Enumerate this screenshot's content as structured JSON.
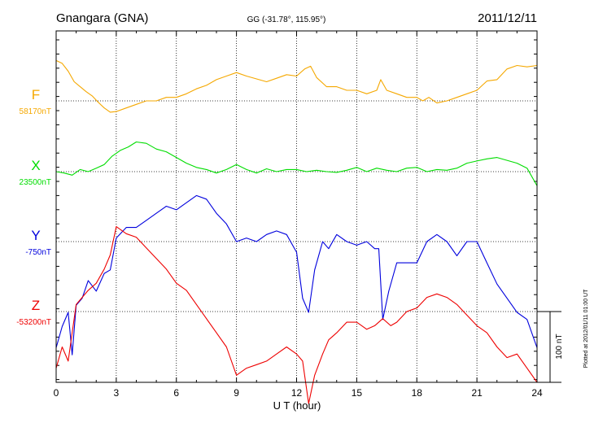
{
  "header": {
    "station": "Gnangara (GNA)",
    "coords": "GG (-31.78°, 115.95°)",
    "date": "2011/12/11"
  },
  "footer": {
    "plotted": "Plotted at 2012/01/11 01:00 UT",
    "scale_label": "100 nT"
  },
  "chart_data": {
    "type": "line",
    "title": "Gnangara (GNA)",
    "xlabel": "U T (hour)",
    "ylabel": "",
    "xlim": [
      0,
      24
    ],
    "xticks": [
      0,
      3,
      6,
      9,
      12,
      15,
      18,
      21,
      24
    ],
    "x_tick_labels": [
      "0",
      "3",
      "6",
      "9",
      "12",
      "15",
      "18",
      "21",
      "24"
    ],
    "grid": true,
    "scale_bar_nT": 100,
    "channels": [
      {
        "name": "F",
        "baseline_label": "58170nT",
        "baseline_nT": 58170,
        "color": "#f5a800",
        "x": [
          0,
          0.3,
          0.6,
          0.9,
          1.2,
          1.5,
          1.8,
          2.1,
          2.4,
          2.7,
          3,
          3.5,
          4,
          4.5,
          5,
          5.5,
          6,
          6.5,
          7,
          7.5,
          8,
          8.5,
          9,
          9.5,
          10,
          10.5,
          11,
          11.5,
          12,
          12.4,
          12.7,
          13,
          13.5,
          14,
          14.5,
          15,
          15.5,
          16,
          16.2,
          16.5,
          17,
          17.5,
          18,
          18.3,
          18.6,
          19,
          19.5,
          20,
          20.5,
          21,
          21.5,
          22,
          22.5,
          23,
          23.5,
          24
        ],
        "y": [
          57,
          53,
          42,
          27,
          20,
          13,
          7,
          -2,
          -10,
          -16,
          -15,
          -10,
          -5,
          0,
          0,
          5,
          5,
          10,
          17,
          22,
          30,
          35,
          40,
          35,
          31,
          27,
          32,
          37,
          35,
          45,
          49,
          33,
          20,
          20,
          15,
          15,
          10,
          15,
          30,
          15,
          10,
          5,
          5,
          0,
          5,
          -3,
          0,
          5,
          10,
          15,
          28,
          30,
          45,
          50,
          48,
          50
        ]
      },
      {
        "name": "X",
        "baseline_label": "23500nT",
        "baseline_nT": 23500,
        "color": "#00dd00",
        "x": [
          0,
          0.4,
          0.8,
          1.2,
          1.6,
          2,
          2.4,
          2.8,
          3.2,
          3.6,
          4,
          4.5,
          5,
          5.5,
          6,
          6.5,
          7,
          7.5,
          8,
          8.5,
          9,
          9.5,
          10,
          10.5,
          11,
          11.5,
          12,
          12.5,
          13,
          13.5,
          14,
          14.5,
          15,
          15.5,
          16,
          16.5,
          17,
          17.5,
          18,
          18.5,
          19,
          19.5,
          20,
          20.5,
          21,
          21.5,
          22,
          22.5,
          23,
          23.5,
          24
        ],
        "y": [
          0,
          -2,
          -5,
          3,
          0,
          5,
          10,
          22,
          30,
          35,
          42,
          40,
          32,
          28,
          20,
          12,
          6,
          3,
          -2,
          3,
          10,
          3,
          -2,
          4,
          0,
          3,
          3,
          0,
          2,
          0,
          -1,
          2,
          6,
          0,
          5,
          2,
          0,
          5,
          6,
          0,
          3,
          2,
          5,
          12,
          15,
          18,
          20,
          16,
          12,
          5,
          -20
        ]
      },
      {
        "name": "Y",
        "baseline_label": "-750nT",
        "baseline_nT": -750,
        "color": "#0000dd",
        "x": [
          0,
          0.3,
          0.6,
          0.8,
          1,
          1.3,
          1.6,
          2,
          2.4,
          2.7,
          3,
          3.5,
          4,
          4.5,
          5,
          5.5,
          6,
          6.5,
          7,
          7.5,
          8,
          8.5,
          9,
          9.5,
          10,
          10.5,
          11,
          11.5,
          12,
          12.3,
          12.6,
          12.9,
          13.3,
          13.6,
          14,
          14.5,
          15,
          15.5,
          15.9,
          16.1,
          16.3,
          16.6,
          17,
          17.5,
          18,
          18.5,
          19,
          19.5,
          20,
          20.5,
          21,
          21.5,
          22,
          22.5,
          23,
          23.5,
          24
        ],
        "y": [
          -150,
          -120,
          -100,
          -160,
          -90,
          -80,
          -55,
          -70,
          -45,
          -40,
          5,
          20,
          20,
          30,
          40,
          50,
          45,
          55,
          65,
          60,
          40,
          25,
          0,
          5,
          0,
          10,
          15,
          10,
          -15,
          -80,
          -100,
          -40,
          0,
          -10,
          10,
          0,
          -5,
          0,
          -10,
          -10,
          -110,
          -70,
          -30,
          -30,
          -30,
          0,
          10,
          0,
          -20,
          0,
          0,
          -30,
          -60,
          -80,
          -100,
          -110,
          -150
        ]
      },
      {
        "name": "Z",
        "baseline_label": "-53200nT",
        "baseline_nT": -53200,
        "color": "#ee0000",
        "x": [
          0,
          0.3,
          0.6,
          0.8,
          1,
          1.3,
          1.6,
          2,
          2.4,
          2.7,
          3,
          3.5,
          4,
          4.5,
          5,
          5.5,
          6,
          6.5,
          7,
          7.5,
          8,
          8.5,
          9,
          9.5,
          10,
          10.5,
          11,
          11.5,
          12,
          12.3,
          12.6,
          12.9,
          13.3,
          13.6,
          14,
          14.5,
          15,
          15.5,
          15.9,
          16.3,
          16.7,
          17,
          17.5,
          18,
          18.5,
          19,
          19.5,
          20,
          20.5,
          21,
          21.5,
          22,
          22.5,
          23,
          23.5,
          24
        ],
        "y": [
          -80,
          -50,
          -70,
          -30,
          10,
          20,
          30,
          40,
          60,
          80,
          120,
          110,
          105,
          90,
          75,
          60,
          40,
          30,
          10,
          -10,
          -30,
          -50,
          -90,
          -80,
          -75,
          -70,
          -60,
          -50,
          -60,
          -70,
          -130,
          -90,
          -60,
          -40,
          -30,
          -15,
          -15,
          -25,
          -20,
          -10,
          -20,
          -15,
          0,
          5,
          20,
          25,
          20,
          10,
          -5,
          -20,
          -30,
          -50,
          -65,
          -60,
          -80,
          -100
        ]
      }
    ]
  }
}
